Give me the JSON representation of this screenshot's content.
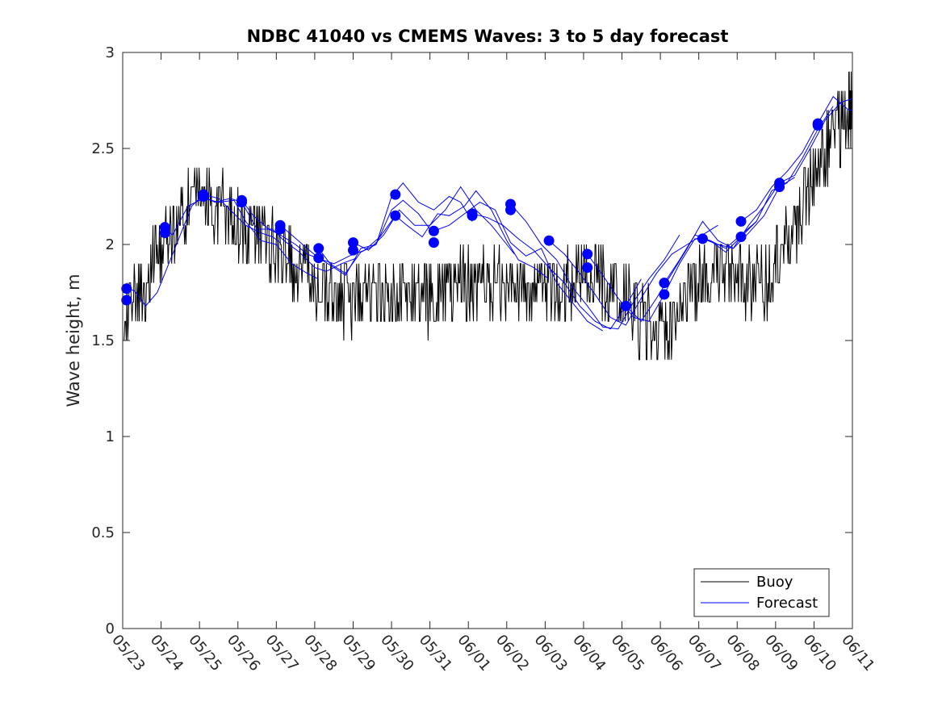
{
  "chart_data": {
    "type": "line",
    "title": "NDBC 41040 vs CMEMS Waves: 3 to 5 day forecast",
    "xlabel": "",
    "ylabel": "Wave height, m",
    "x_ticks": [
      "05/23",
      "05/24",
      "05/25",
      "05/26",
      "05/27",
      "05/28",
      "05/29",
      "05/30",
      "05/31",
      "06/01",
      "06/02",
      "06/03",
      "06/04",
      "06/05",
      "06/06",
      "06/07",
      "06/08",
      "06/09",
      "06/10",
      "06/11"
    ],
    "x_range": [
      "05/23",
      "06/11"
    ],
    "ylim": [
      0,
      3
    ],
    "y_ticks": [
      "0",
      "0.5",
      "1",
      "1.5",
      "2",
      "2.5",
      "3"
    ],
    "grid": false,
    "legend": {
      "position": "bottom-right",
      "entries": [
        "Buoy",
        "Forecast"
      ]
    },
    "colors": {
      "buoy": "#000000",
      "forecast": "#0000ff",
      "axis": "#262626"
    },
    "buoy": {
      "name": "Buoy",
      "day": [
        0.0,
        0.3,
        0.6,
        0.9,
        1.2,
        1.5,
        1.8,
        2.1,
        2.4,
        2.7,
        3.0,
        3.3,
        3.6,
        3.9,
        4.2,
        4.5,
        4.8,
        5.1,
        5.4,
        5.7,
        6.0,
        6.3,
        6.6,
        6.9,
        7.2,
        7.5,
        7.8,
        8.1,
        8.4,
        8.7,
        9.0,
        9.3,
        9.6,
        9.9,
        10.2,
        10.5,
        10.8,
        11.1,
        11.4,
        11.7,
        12.0,
        12.3,
        12.6,
        12.9,
        13.2,
        13.5,
        13.8,
        14.1,
        14.4,
        14.7,
        15.0,
        15.3,
        15.6,
        15.9,
        16.2,
        16.5,
        16.8,
        17.1,
        17.4,
        17.7,
        18.0,
        18.3,
        18.6,
        18.9,
        19.0
      ],
      "values": [
        1.65,
        1.7,
        1.8,
        1.95,
        2.05,
        2.15,
        2.25,
        2.3,
        2.2,
        2.2,
        2.1,
        2.05,
        2.05,
        2.0,
        1.95,
        1.85,
        1.8,
        1.75,
        1.75,
        1.7,
        1.7,
        1.75,
        1.75,
        1.75,
        1.75,
        1.75,
        1.7,
        1.75,
        1.75,
        1.8,
        1.8,
        1.8,
        1.8,
        1.8,
        1.8,
        1.75,
        1.75,
        1.75,
        1.75,
        1.8,
        1.85,
        1.85,
        1.75,
        1.75,
        1.7,
        1.6,
        1.55,
        1.55,
        1.6,
        1.75,
        1.8,
        1.85,
        1.85,
        1.85,
        1.8,
        1.8,
        1.8,
        1.95,
        2.05,
        2.2,
        2.35,
        2.5,
        2.6,
        2.7,
        2.7
      ]
    },
    "forecast_runs": [
      {
        "day": [
          0.0,
          0.3,
          0.6,
          0.9,
          1.1,
          1.4,
          1.8,
          2.1,
          2.5,
          2.9,
          3.2,
          3.6,
          3.9,
          4.1
        ],
        "values": [
          1.77,
          1.76,
          1.68,
          1.75,
          1.85,
          2.0,
          2.2,
          2.26,
          2.24,
          2.16,
          2.1,
          2.06,
          2.04,
          2.01
        ]
      },
      {
        "day": [
          1.0,
          1.3,
          1.7,
          2.1,
          2.5,
          2.9,
          3.2,
          3.6,
          4.0,
          4.4,
          4.8,
          5.1
        ],
        "values": [
          2.09,
          2.05,
          2.2,
          2.24,
          2.22,
          2.23,
          2.12,
          2.02,
          2.0,
          1.9,
          1.85,
          1.82
        ]
      },
      {
        "day": [
          2.1,
          2.4,
          2.8,
          3.1,
          3.5,
          3.9,
          4.2,
          4.6,
          5.0,
          5.3,
          5.7,
          6.1
        ],
        "values": [
          2.25,
          2.22,
          2.24,
          2.22,
          2.08,
          2.08,
          2.02,
          1.96,
          1.88,
          1.86,
          1.9,
          1.93
        ]
      },
      {
        "day": [
          3.1,
          3.4,
          3.8,
          4.1,
          4.5,
          4.8,
          5.2,
          5.5,
          5.9,
          6.3,
          6.7,
          7.1
        ],
        "values": [
          2.23,
          2.15,
          2.08,
          2.05,
          2.0,
          1.95,
          1.92,
          1.9,
          1.94,
          1.97,
          2.04,
          2.15
        ]
      },
      {
        "day": [
          4.1,
          4.4,
          4.8,
          5.1,
          5.5,
          5.8,
          6.2,
          6.6,
          7.0,
          7.3,
          7.7,
          8.0
        ],
        "values": [
          2.1,
          2.05,
          1.98,
          1.93,
          1.88,
          1.84,
          1.98,
          2.0,
          2.18,
          2.23,
          2.16,
          2.08
        ]
      },
      {
        "day": [
          5.1,
          5.4,
          5.8,
          6.2,
          6.6,
          7.0,
          7.3,
          7.7,
          8.1,
          8.5,
          8.8,
          9.1
        ],
        "values": [
          1.98,
          1.9,
          1.85,
          1.96,
          2.0,
          2.25,
          2.32,
          2.22,
          2.18,
          2.25,
          2.22,
          2.12
        ]
      },
      {
        "day": [
          6.0,
          6.4,
          6.8,
          7.2,
          7.6,
          8.0,
          8.4,
          8.8,
          9.2,
          9.6,
          10.0,
          10.2
        ],
        "values": [
          2.01,
          1.97,
          2.05,
          2.18,
          2.1,
          2.1,
          2.18,
          2.3,
          2.18,
          2.1,
          2.0,
          1.95
        ]
      },
      {
        "day": [
          7.1,
          7.4,
          7.8,
          8.2,
          8.5,
          8.9,
          9.2,
          9.6,
          10.0,
          10.3,
          10.7,
          11.1
        ],
        "values": [
          2.15,
          2.1,
          2.04,
          2.16,
          2.15,
          2.2,
          2.28,
          2.18,
          2.02,
          1.92,
          1.88,
          1.82
        ]
      },
      {
        "day": [
          8.1,
          8.5,
          8.9,
          9.3,
          9.7,
          10.1,
          10.5,
          10.9,
          11.3,
          11.7,
          12.1,
          12.5
        ],
        "values": [
          2.07,
          2.1,
          2.16,
          2.22,
          2.18,
          2.01,
          1.94,
          1.98,
          1.8,
          1.7,
          1.6,
          1.55
        ]
      },
      {
        "day": [
          9.1,
          9.5,
          9.9,
          10.3,
          10.7,
          11.1,
          11.5,
          11.9,
          12.3,
          12.7,
          13.1,
          13.5
        ],
        "values": [
          2.16,
          2.14,
          2.1,
          2.03,
          1.97,
          1.88,
          1.8,
          1.68,
          1.6,
          1.56,
          1.68,
          1.82
        ]
      },
      {
        "day": [
          10.1,
          10.5,
          10.9,
          11.3,
          11.7,
          12.1,
          12.5,
          12.9,
          13.3,
          13.7,
          14.1,
          14.5
        ],
        "values": [
          2.21,
          2.12,
          2.0,
          1.92,
          1.78,
          1.68,
          1.57,
          1.56,
          1.7,
          1.82,
          1.92,
          2.05
        ]
      },
      {
        "day": [
          11.1,
          11.5,
          11.9,
          12.3,
          12.7,
          13.1,
          13.5,
          13.9,
          14.3,
          14.7,
          15.1,
          15.5
        ],
        "values": [
          2.02,
          1.95,
          1.85,
          1.74,
          1.62,
          1.58,
          1.72,
          1.85,
          1.95,
          2.0,
          2.05,
          2.1
        ]
      },
      {
        "day": [
          12.1,
          12.5,
          12.9,
          13.3,
          13.7,
          14.1,
          14.5,
          14.9,
          15.3,
          15.7,
          16.1,
          16.5
        ],
        "values": [
          1.95,
          1.84,
          1.72,
          1.62,
          1.6,
          1.74,
          1.9,
          2.03,
          2.02,
          1.98,
          2.05,
          2.12
        ]
      },
      {
        "day": [
          13.1,
          13.5,
          13.9,
          14.3,
          14.7,
          15.1,
          15.5,
          15.9,
          16.3,
          16.7,
          17.1,
          17.5
        ],
        "values": [
          1.68,
          1.6,
          1.72,
          1.85,
          1.98,
          2.12,
          2.02,
          1.98,
          2.06,
          2.15,
          2.3,
          2.35
        ]
      },
      {
        "day": [
          14.1,
          14.5,
          14.9,
          15.3,
          15.7,
          16.1,
          16.5,
          16.9,
          17.3,
          17.7,
          18.1,
          18.5
        ],
        "values": [
          1.8,
          1.92,
          2.05,
          2.02,
          1.96,
          2.04,
          2.12,
          2.28,
          2.32,
          2.45,
          2.6,
          2.72
        ]
      },
      {
        "day": [
          15.1,
          15.5,
          15.9,
          16.3,
          16.7,
          17.1,
          17.5,
          17.9,
          18.3,
          18.7,
          19.0
        ],
        "values": [
          2.03,
          2.0,
          1.98,
          2.1,
          2.2,
          2.32,
          2.36,
          2.5,
          2.65,
          2.74,
          2.76
        ]
      },
      {
        "day": [
          16.1,
          16.5,
          16.9,
          17.3,
          17.7,
          18.1,
          18.5,
          18.9,
          19.0
        ],
        "values": [
          2.12,
          2.18,
          2.3,
          2.38,
          2.48,
          2.63,
          2.77,
          2.7,
          2.7
        ]
      }
    ],
    "forecast_points": {
      "name": "Forecast",
      "day": [
        0.1,
        0.1,
        1.1,
        1.1,
        2.1,
        2.1,
        3.1,
        3.1,
        4.1,
        4.1,
        5.1,
        5.1,
        6.0,
        6.0,
        7.1,
        7.1,
        8.1,
        8.1,
        9.1,
        9.1,
        10.1,
        10.1,
        11.1,
        12.1,
        12.1,
        13.1,
        14.1,
        14.1,
        15.1,
        16.1,
        16.1,
        17.1,
        17.1,
        18.1,
        18.1
      ],
      "values": [
        1.77,
        1.71,
        2.09,
        2.06,
        2.26,
        2.25,
        2.23,
        2.22,
        2.1,
        2.08,
        1.98,
        1.93,
        2.01,
        1.97,
        2.26,
        2.15,
        2.07,
        2.01,
        2.16,
        2.15,
        2.21,
        2.18,
        2.02,
        1.95,
        1.88,
        1.68,
        1.8,
        1.74,
        2.03,
        2.12,
        2.04,
        2.32,
        2.3,
        2.63,
        2.62
      ]
    }
  }
}
